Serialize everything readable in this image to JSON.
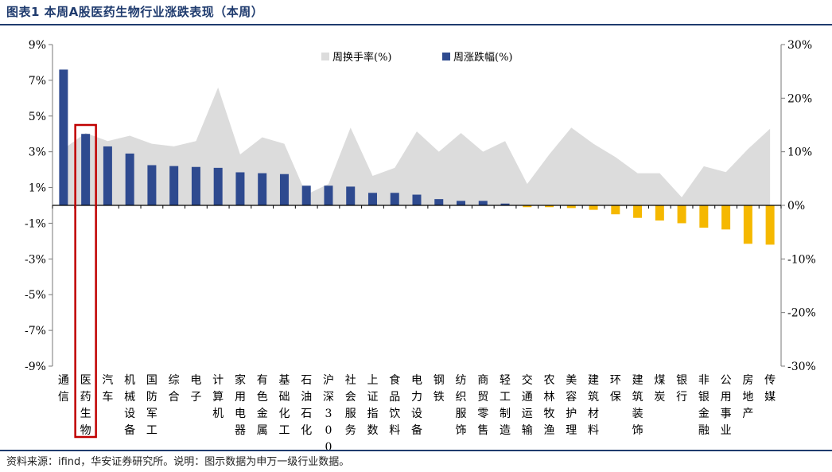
{
  "title": "图表1 本周A股医药生物行业涨跌表现（本周）",
  "source": "资料来源：ifind，华安证券研究所。说明：图示数据为申万一级行业数据。",
  "colors": {
    "bar_positive": "#2e4a8f",
    "bar_negative": "#f5b800",
    "area": "#dcdcdc",
    "highlight": "#c00000",
    "rule": "#1f3b6e"
  },
  "chart_data": {
    "type": "bar+area",
    "categories": [
      "通信",
      "医药生物",
      "汽车",
      "机械设备",
      "国防军工",
      "综合",
      "电子",
      "计算机",
      "家用电器",
      "有色金属",
      "基础化工",
      "石油石化",
      "沪深300",
      "社会服务",
      "上证指数",
      "食品饮料",
      "电力设备",
      "钢铁",
      "纺织服饰",
      "商贸零售",
      "轻工制造",
      "交通运输",
      "农林牧渔",
      "美容护理",
      "建筑材料",
      "环保",
      "建筑装饰",
      "煤炭",
      "银行",
      "非银金融",
      "公用事业",
      "房地产",
      "传媒"
    ],
    "series": [
      {
        "name": "周换手率(%)",
        "type": "area",
        "axis": "right",
        "values": [
          10.5,
          13.5,
          12.0,
          13.0,
          11.5,
          11.0,
          12.0,
          22.0,
          9.5,
          12.7,
          11.5,
          2.0,
          4.0,
          14.5,
          5.5,
          7.0,
          13.8,
          10.0,
          13.5,
          10.0,
          12.0,
          4.0,
          9.5,
          14.5,
          11.5,
          9.0,
          6.0,
          6.0,
          1.5,
          7.3,
          6.2,
          10.5,
          14.3
        ]
      },
      {
        "name": "周涨跌幅(%)",
        "type": "bar",
        "axis": "left",
        "values": [
          7.6,
          4.0,
          3.3,
          2.9,
          2.25,
          2.2,
          2.15,
          2.1,
          1.85,
          1.8,
          1.75,
          1.1,
          1.1,
          1.05,
          0.7,
          0.7,
          0.6,
          0.35,
          0.25,
          0.25,
          0.1,
          -0.1,
          -0.1,
          -0.15,
          -0.25,
          -0.5,
          -0.7,
          -0.85,
          -1.0,
          -1.25,
          -1.35,
          -2.15,
          -2.2
        ]
      }
    ],
    "y_left": {
      "min": -9,
      "max": 9,
      "ticks": [
        "9%",
        "7%",
        "5%",
        "3%",
        "1%",
        "-1%",
        "-3%",
        "-5%",
        "-7%",
        "-9%"
      ]
    },
    "y_right": {
      "min": -30,
      "max": 30,
      "ticks": [
        "30%",
        "20%",
        "10%",
        "0%",
        "-10%",
        "-20%",
        "-30%"
      ]
    },
    "legend_position": "top-center",
    "highlighted_category": "医药生物"
  }
}
